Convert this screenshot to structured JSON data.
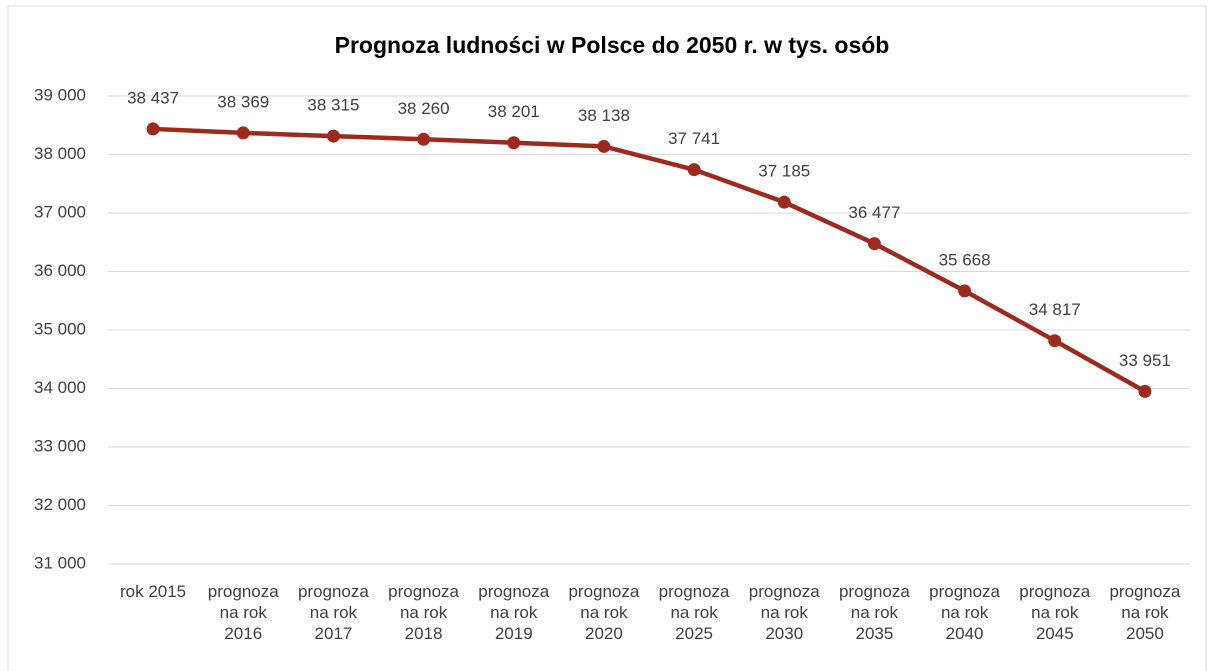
{
  "chart_data": {
    "type": "line",
    "title": "Prognoza ludności w Polsce do 2050 r. w tys. osób",
    "categories": [
      "rok 2015",
      "prognoza na rok 2016",
      "prognoza na rok 2017",
      "prognoza na rok 2018",
      "prognoza na rok 2019",
      "prognoza na rok 2020",
      "prognoza na rok 2025",
      "prognoza na rok 2030",
      "prognoza na rok 2035",
      "prognoza na rok 2040",
      "prognoza na rok 2045",
      "prognoza na rok 2050"
    ],
    "values": [
      38437,
      38369,
      38315,
      38260,
      38201,
      38138,
      37741,
      37185,
      36477,
      35668,
      34817,
      33951
    ],
    "value_labels": [
      "38 437",
      "38 369",
      "38 315",
      "38 260",
      "38 201",
      "38 138",
      "37 741",
      "37 185",
      "36 477",
      "35 668",
      "34 817",
      "33 951"
    ],
    "color": "#9e2a1e",
    "ylim": [
      31000,
      39000
    ],
    "yticks": [
      {
        "value": 31000,
        "label": "31 000"
      },
      {
        "value": 32000,
        "label": "32 000"
      },
      {
        "value": 33000,
        "label": "33 000"
      },
      {
        "value": 34000,
        "label": "34 000"
      },
      {
        "value": 35000,
        "label": "35 000"
      },
      {
        "value": 36000,
        "label": "36 000"
      },
      {
        "value": 37000,
        "label": "37 000"
      },
      {
        "value": 38000,
        "label": "38 000"
      },
      {
        "value": 39000,
        "label": "39 000"
      }
    ],
    "grid": true
  }
}
